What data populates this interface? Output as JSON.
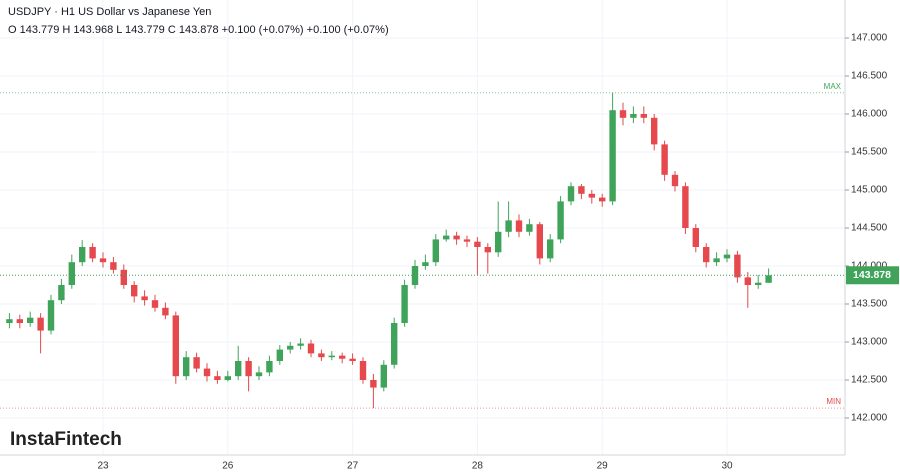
{
  "chart_data": {
    "type": "candlestick",
    "title": "USDJPY · H1 US Dollar vs Japanese Yen",
    "subtitle": "O 143.779 H 143.968 L 143.779 C 143.878 +0.100 (+0.07%) +0.100 (+0.07%)",
    "watermark": "InstaFintech",
    "up_color": "#3fa45a",
    "down_color": "#e5484d",
    "grid": true,
    "ylim": [
      141.513,
      147.5
    ],
    "yticks": [
      {
        "value": 142,
        "label": "142.000"
      },
      {
        "value": 142.5,
        "label": "142.500"
      },
      {
        "value": 143,
        "label": "143.000"
      },
      {
        "value": 143.5,
        "label": "143.500"
      },
      {
        "value": 144,
        "label": "144.000"
      },
      {
        "value": 144.5,
        "label": "144.500"
      },
      {
        "value": 145,
        "label": "145.000"
      },
      {
        "value": 145.5,
        "label": "145.500"
      },
      {
        "value": 146,
        "label": "146.000"
      },
      {
        "value": 146.5,
        "label": "146.500"
      },
      {
        "value": 147,
        "label": "147.000"
      }
    ],
    "last_price": 143.878,
    "max_line": {
      "value": 146.28,
      "label": "MAX"
    },
    "min_line": {
      "value": 142.13,
      "label": "MIN"
    },
    "categories": [
      null,
      null,
      null,
      null,
      null,
      null,
      null,
      null,
      null,
      "23",
      null,
      null,
      null,
      null,
      null,
      null,
      null,
      null,
      null,
      null,
      null,
      "26",
      null,
      null,
      null,
      null,
      null,
      null,
      null,
      null,
      null,
      null,
      null,
      "27",
      null,
      null,
      null,
      null,
      null,
      null,
      null,
      null,
      null,
      null,
      null,
      "28",
      null,
      null,
      null,
      null,
      null,
      null,
      null,
      null,
      null,
      null,
      null,
      "29",
      null,
      null,
      null,
      null,
      null,
      null,
      null,
      null,
      null,
      null,
      null,
      "30",
      null,
      null,
      null,
      null
    ],
    "open": [
      143.25,
      143.3,
      143.25,
      143.32,
      143.15,
      143.55,
      143.75,
      144.05,
      144.25,
      144.1,
      144.05,
      143.95,
      143.75,
      143.6,
      143.55,
      143.45,
      143.35,
      142.55,
      142.8,
      142.65,
      142.55,
      142.5,
      142.55,
      142.75,
      142.55,
      142.6,
      142.75,
      142.9,
      142.95,
      142.98,
      142.85,
      142.8,
      142.82,
      142.78,
      142.75,
      142.5,
      142.4,
      142.7,
      143.25,
      143.75,
      144.0,
      144.05,
      144.35,
      144.4,
      144.35,
      144.32,
      144.25,
      144.18,
      144.45,
      144.6,
      144.45,
      144.55,
      144.1,
      144.35,
      144.85,
      145.05,
      144.95,
      144.9,
      144.85,
      146.05,
      145.95,
      146.0,
      145.95,
      145.6,
      145.2,
      145.05,
      144.5,
      144.25,
      144.05,
      144.1,
      144.15,
      143.85,
      143.75,
      143.779
    ],
    "high": [
      143.38,
      143.36,
      143.4,
      143.38,
      143.62,
      143.83,
      144.15,
      144.34,
      144.3,
      144.18,
      144.12,
      144.02,
      143.8,
      143.68,
      143.62,
      143.52,
      143.4,
      142.88,
      142.86,
      142.72,
      142.62,
      142.62,
      142.95,
      142.8,
      142.68,
      142.82,
      142.96,
      143.0,
      143.05,
      143.03,
      142.9,
      142.88,
      142.86,
      142.85,
      142.8,
      142.58,
      142.76,
      143.32,
      143.82,
      144.08,
      144.15,
      144.42,
      144.48,
      144.45,
      144.4,
      144.38,
      144.3,
      144.85,
      144.85,
      144.68,
      144.62,
      144.58,
      144.42,
      144.92,
      145.1,
      145.08,
      145.0,
      144.95,
      146.28,
      146.15,
      146.1,
      146.1,
      146.0,
      145.65,
      145.25,
      145.1,
      144.55,
      144.3,
      144.18,
      144.22,
      144.2,
      143.92,
      143.88,
      143.968
    ],
    "low": [
      143.18,
      143.18,
      143.2,
      142.85,
      143.1,
      143.5,
      143.7,
      144.0,
      144.05,
      143.98,
      143.9,
      143.7,
      143.52,
      143.48,
      143.4,
      143.3,
      142.45,
      142.5,
      142.6,
      142.48,
      142.45,
      142.48,
      142.5,
      142.35,
      142.5,
      142.55,
      142.7,
      142.85,
      142.9,
      142.8,
      142.75,
      142.76,
      142.72,
      142.7,
      142.45,
      142.13,
      142.35,
      142.65,
      143.2,
      143.7,
      143.95,
      144.0,
      144.32,
      144.28,
      144.25,
      143.88,
      143.9,
      144.12,
      144.38,
      144.38,
      144.4,
      144.02,
      144.05,
      144.3,
      144.8,
      144.88,
      144.82,
      144.78,
      144.8,
      145.85,
      145.88,
      145.88,
      145.52,
      145.12,
      144.98,
      144.42,
      144.18,
      143.98,
      144.0,
      144.05,
      143.78,
      143.45,
      143.7,
      143.779
    ],
    "close": [
      143.3,
      143.25,
      143.32,
      143.15,
      143.55,
      143.75,
      144.05,
      144.25,
      144.1,
      144.05,
      143.95,
      143.75,
      143.6,
      143.55,
      143.45,
      143.35,
      142.55,
      142.8,
      142.65,
      142.55,
      142.5,
      142.55,
      142.75,
      142.55,
      142.6,
      142.75,
      142.9,
      142.95,
      142.98,
      142.85,
      142.8,
      142.82,
      142.78,
      142.75,
      142.5,
      142.4,
      142.7,
      143.25,
      143.75,
      144.0,
      144.05,
      144.35,
      144.4,
      144.35,
      144.32,
      144.25,
      144.18,
      144.45,
      144.6,
      144.45,
      144.55,
      144.1,
      144.35,
      144.85,
      145.05,
      144.95,
      144.9,
      144.85,
      146.05,
      145.95,
      146.0,
      145.95,
      145.6,
      145.2,
      145.05,
      144.5,
      144.25,
      144.05,
      144.1,
      144.15,
      143.85,
      143.75,
      143.78,
      143.878
    ]
  }
}
